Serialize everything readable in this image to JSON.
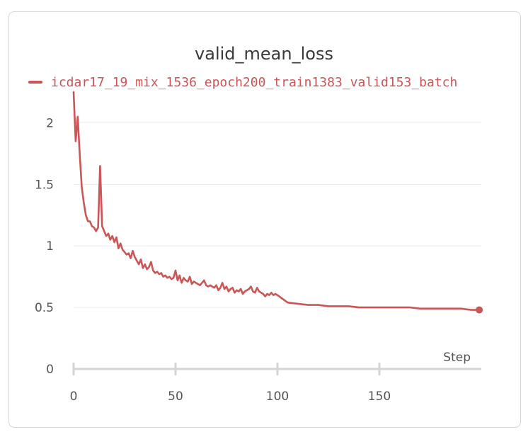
{
  "chart_data": {
    "type": "line",
    "title": "valid_mean_loss",
    "xlabel": "Step",
    "ylabel": "",
    "xlim": [
      0,
      200
    ],
    "ylim": [
      0,
      2.25
    ],
    "xticks": [
      0,
      50,
      100,
      150
    ],
    "yticks": [
      0,
      0.5,
      1,
      1.5,
      2
    ],
    "grid": true,
    "legend_position": "top-left",
    "series": [
      {
        "name": "icdar17_19_mix_1536_epoch200_train1383_valid153_batch",
        "color": "#cc5555",
        "x": [
          0,
          1,
          2,
          3,
          4,
          5,
          6,
          7,
          8,
          9,
          10,
          11,
          12,
          13,
          14,
          15,
          16,
          17,
          18,
          19,
          20,
          21,
          22,
          23,
          24,
          25,
          26,
          27,
          28,
          29,
          30,
          31,
          32,
          33,
          34,
          35,
          36,
          37,
          38,
          39,
          40,
          41,
          42,
          43,
          44,
          45,
          46,
          47,
          48,
          49,
          50,
          51,
          52,
          53,
          54,
          55,
          56,
          57,
          58,
          59,
          60,
          61,
          62,
          63,
          64,
          65,
          66,
          67,
          68,
          69,
          70,
          71,
          72,
          73,
          74,
          75,
          76,
          77,
          78,
          79,
          80,
          81,
          82,
          83,
          84,
          85,
          86,
          87,
          88,
          89,
          90,
          91,
          92,
          93,
          94,
          95,
          96,
          97,
          98,
          99,
          100,
          105,
          110,
          115,
          120,
          125,
          130,
          135,
          140,
          145,
          150,
          155,
          160,
          165,
          170,
          175,
          180,
          185,
          190,
          195,
          199
        ],
        "y": [
          2.25,
          1.85,
          2.05,
          1.75,
          1.48,
          1.35,
          1.25,
          1.2,
          1.2,
          1.16,
          1.15,
          1.12,
          1.15,
          1.65,
          1.16,
          1.12,
          1.08,
          1.1,
          1.05,
          1.08,
          1.03,
          1.07,
          0.98,
          1.02,
          0.97,
          0.95,
          0.93,
          0.94,
          0.9,
          0.96,
          0.91,
          0.88,
          0.85,
          0.89,
          0.82,
          0.85,
          0.81,
          0.83,
          0.87,
          0.8,
          0.78,
          0.79,
          0.77,
          0.78,
          0.75,
          0.76,
          0.74,
          0.75,
          0.73,
          0.74,
          0.8,
          0.72,
          0.76,
          0.7,
          0.74,
          0.72,
          0.71,
          0.75,
          0.69,
          0.71,
          0.7,
          0.69,
          0.68,
          0.7,
          0.72,
          0.68,
          0.67,
          0.68,
          0.67,
          0.66,
          0.68,
          0.64,
          0.66,
          0.7,
          0.65,
          0.67,
          0.63,
          0.65,
          0.66,
          0.62,
          0.64,
          0.63,
          0.65,
          0.61,
          0.63,
          0.64,
          0.65,
          0.67,
          0.63,
          0.62,
          0.66,
          0.63,
          0.62,
          0.61,
          0.59,
          0.61,
          0.6,
          0.62,
          0.6,
          0.61,
          0.6,
          0.54,
          0.53,
          0.52,
          0.52,
          0.51,
          0.51,
          0.51,
          0.5,
          0.5,
          0.5,
          0.5,
          0.5,
          0.5,
          0.49,
          0.49,
          0.49,
          0.49,
          0.49,
          0.48,
          0.48
        ]
      }
    ]
  }
}
